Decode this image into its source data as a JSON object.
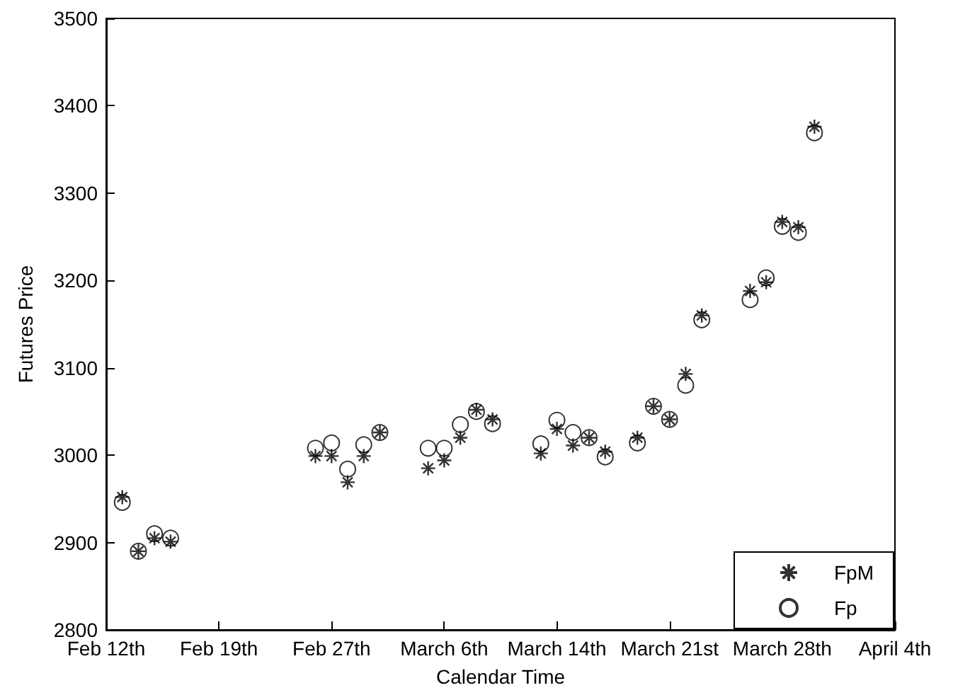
{
  "chart_data": {
    "type": "scatter",
    "xlabel": "Calendar Time",
    "ylabel": "Futures Price",
    "categories": [
      "Feb 12th",
      null,
      null,
      null,
      null,
      null,
      null,
      "Feb 19th",
      null,
      null,
      null,
      null,
      null,
      null,
      "Feb 27th",
      null,
      null,
      null,
      null,
      null,
      null,
      "March 6th",
      null,
      null,
      null,
      null,
      null,
      null,
      "March 14th",
      null,
      null,
      null,
      null,
      null,
      null,
      "March 21st",
      null,
      null,
      null,
      null,
      null,
      null,
      "March 28th",
      null,
      null,
      null,
      null,
      null,
      null,
      "April 4th"
    ],
    "ylim": [
      2800,
      3500
    ],
    "yticks": [
      2800,
      2900,
      3000,
      3100,
      3200,
      3300,
      3400,
      3500
    ],
    "grid": false,
    "legend": "bottom right",
    "series": [
      {
        "name": "FpM",
        "color": "#000000",
        "marker": "cross",
        "values": [
          null,
          2952,
          2890,
          2905,
          2901,
          null,
          null,
          null,
          null,
          null,
          null,
          null,
          null,
          2999,
          2999,
          2969,
          2999,
          3026,
          null,
          null,
          2985,
          2994,
          3020,
          3052,
          3041,
          null,
          null,
          3002,
          3030,
          3011,
          3020,
          3004,
          null,
          3020,
          3056,
          3041,
          3093,
          3160,
          null,
          null,
          3188,
          3198,
          3267,
          3261,
          3376,
          null,
          null,
          null,
          null,
          null
        ]
      },
      {
        "name": "Fp",
        "color": "#000000",
        "marker": "circle",
        "values": [
          null,
          2946,
          2890,
          2910,
          2905,
          null,
          null,
          null,
          null,
          null,
          null,
          null,
          null,
          3008,
          3014,
          2984,
          3012,
          3026,
          null,
          null,
          3008,
          3008,
          3035,
          3050,
          3036,
          null,
          null,
          3013,
          3040,
          3026,
          3020,
          2998,
          null,
          3014,
          3056,
          3041,
          3080,
          3155,
          null,
          null,
          3178,
          3203,
          3262,
          3255,
          3369,
          null,
          null,
          null,
          null,
          null
        ]
      }
    ]
  }
}
